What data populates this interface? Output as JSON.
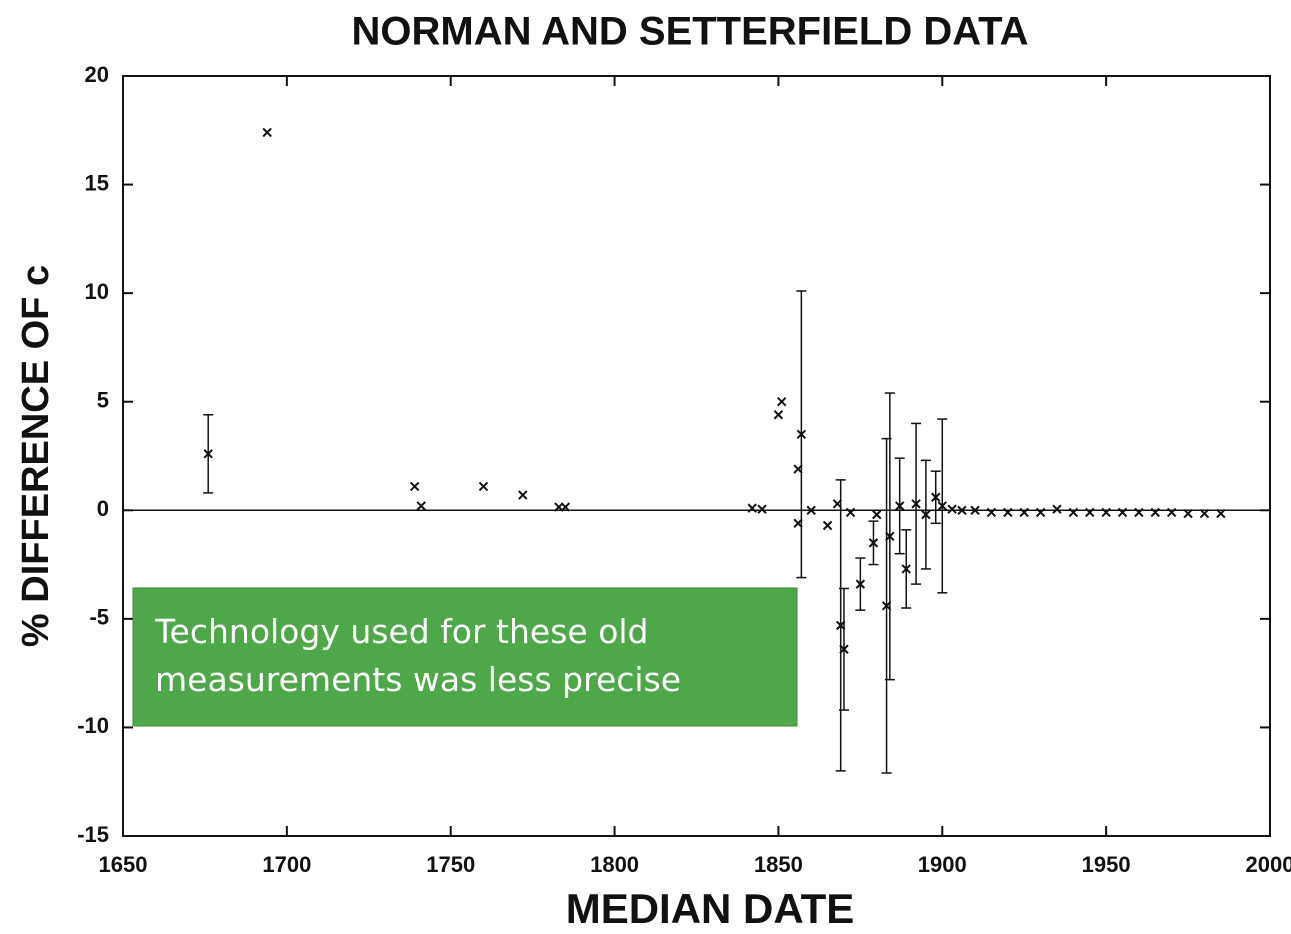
{
  "chart_data": {
    "type": "scatter",
    "title": "NORMAN AND SETTERFIELD DATA",
    "x_label": "MEDIAN DATE",
    "y_label": "% DIFFERENCE OF c",
    "annotation": [
      "Technology used for these old",
      "measurements was less precise"
    ],
    "annotation_color": "#4ea84a",
    "marker_color": "#111111",
    "reference_line": 0,
    "xlim": [
      1650,
      2000
    ],
    "xticks": [
      1650,
      1700,
      1750,
      1800,
      1850,
      1900,
      1950,
      2000
    ],
    "ylim": [
      -15,
      20
    ],
    "yticks": [
      -15,
      -10,
      -5,
      0,
      5,
      10,
      15,
      20
    ],
    "x": [
      1676,
      1694,
      1739,
      1741,
      1760,
      1772,
      1783,
      1785,
      1842,
      1845,
      1850,
      1851,
      1856,
      1856,
      1857,
      1860,
      1865,
      1868,
      1869,
      1870,
      1872,
      1875,
      1879,
      1880,
      1883,
      1884,
      1887,
      1889,
      1892,
      1895,
      1898,
      1900,
      1903,
      1906,
      1910,
      1915,
      1920,
      1925,
      1930,
      1935,
      1940,
      1945,
      1950,
      1955,
      1960,
      1965,
      1970,
      1975,
      1980,
      1985
    ],
    "values": [
      2.6,
      17.4,
      1.1,
      0.2,
      1.1,
      0.7,
      0.15,
      0.15,
      0.1,
      0.05,
      4.4,
      5.0,
      -0.6,
      1.9,
      3.5,
      0,
      -0.7,
      0.3,
      -5.3,
      -6.4,
      -0.1,
      -3.4,
      -1.5,
      -0.2,
      -4.4,
      -1.2,
      0.2,
      -2.7,
      0.3,
      -0.2,
      0.6,
      0.2,
      0.05,
      0,
      0,
      -0.1,
      -0.1,
      -0.1,
      -0.1,
      0.05,
      -0.1,
      -0.1,
      -0.1,
      -0.1,
      -0.1,
      -0.1,
      -0.1,
      -0.15,
      -0.15,
      -0.15
    ],
    "errors": [
      1.8,
      null,
      null,
      null,
      null,
      null,
      null,
      null,
      null,
      null,
      null,
      null,
      null,
      null,
      6.6,
      null,
      null,
      null,
      6.7,
      2.8,
      null,
      1.2,
      1,
      null,
      7.7,
      6.6,
      2.2,
      1.8,
      3.7,
      2.5,
      1.2,
      4.0,
      null,
      null,
      null,
      null,
      null,
      null,
      null,
      null,
      null,
      null,
      null,
      null,
      null,
      null,
      null,
      null,
      null,
      null
    ]
  }
}
